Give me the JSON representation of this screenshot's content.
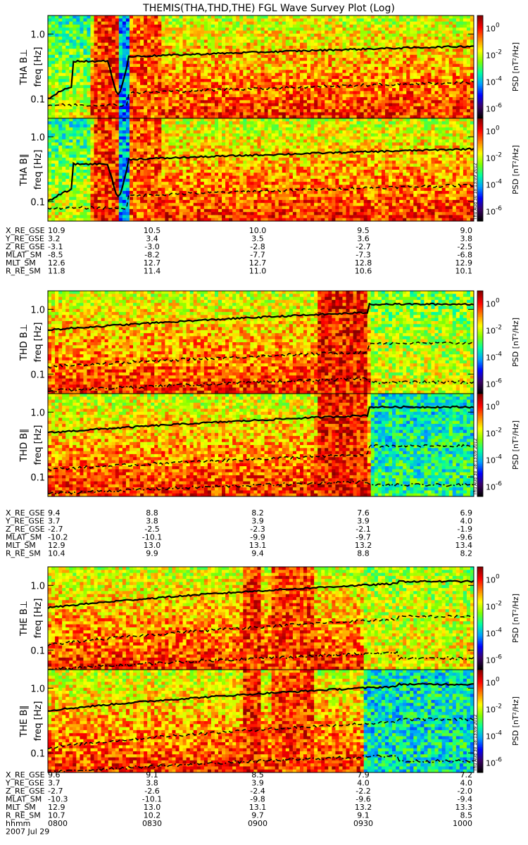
{
  "chart_data": {
    "type": "heatmap",
    "title": "THEMIS(THA,THD,THE) FGL Wave Survey Plot (Log)",
    "date": "2007 Jul 29",
    "freq_axis": {
      "label": "freq [Hz]",
      "scale": "log",
      "ticks": [
        "0.1",
        "1.0"
      ]
    },
    "colorbar": {
      "label": "PSD [nT²/Hz]",
      "scale": "log",
      "ticks": [
        "10^0",
        "10^-2",
        "10^-4",
        "10^-6"
      ],
      "colors": [
        "#000000",
        "#3a0066",
        "#0000ff",
        "#00a0ff",
        "#00ffa0",
        "#80ff00",
        "#ffff00",
        "#ff8000",
        "#ff0000",
        "#8b0000"
      ]
    },
    "stamp": "Thu Aug 30 18:13:09 2012",
    "ephemeris_labels": [
      "X_RE_GSE",
      "Y_RE_GSE",
      "Z_RE_GSE",
      "MLAT_SM",
      "MLT_SM",
      "R_RE_SM"
    ],
    "panels": [
      {
        "label": "THA B⊥",
        "group": "THA"
      },
      {
        "label": "THA B∥",
        "group": "THA"
      },
      {
        "label": "THD B⊥",
        "group": "THD"
      },
      {
        "label": "THD B∥",
        "group": "THD"
      },
      {
        "label": "THE B⊥",
        "group": "THE"
      },
      {
        "label": "THE B∥",
        "group": "THE"
      }
    ],
    "groups": [
      {
        "name": "THA",
        "ephemeris": [
          [
            "10.9",
            "10.5",
            "10.0",
            "9.5",
            "9.0"
          ],
          [
            "3.2",
            "3.4",
            "3.5",
            "3.6",
            "3.8"
          ],
          [
            "-3.1",
            "-3.0",
            "-2.8",
            "-2.7",
            "-2.5"
          ],
          [
            "-8.5",
            "-8.2",
            "-7.7",
            "-7.3",
            "-6.8"
          ],
          [
            "12.6",
            "12.7",
            "12.7",
            "12.8",
            "12.9"
          ],
          [
            "11.8",
            "11.4",
            "11.0",
            "10.6",
            "10.1"
          ]
        ]
      },
      {
        "name": "THD",
        "ephemeris": [
          [
            "9.4",
            "8.8",
            "8.2",
            "7.6",
            "6.9"
          ],
          [
            "3.7",
            "3.8",
            "3.9",
            "3.9",
            "4.0"
          ],
          [
            "-2.7",
            "-2.5",
            "-2.3",
            "-2.1",
            "-1.9"
          ],
          [
            "-10.2",
            "-10.1",
            "-9.9",
            "-9.7",
            "-9.6"
          ],
          [
            "12.9",
            "13.0",
            "13.1",
            "13.2",
            "13.4"
          ],
          [
            "10.4",
            "9.9",
            "9.4",
            "8.8",
            "8.2"
          ]
        ]
      },
      {
        "name": "THE",
        "ephemeris": [
          [
            "9.6",
            "9.1",
            "8.5",
            "7.9",
            "7.2"
          ],
          [
            "3.7",
            "3.8",
            "3.9",
            "4.0",
            "4.0"
          ],
          [
            "-2.7",
            "-2.6",
            "-2.4",
            "-2.2",
            "-2.0"
          ],
          [
            "-10.3",
            "-10.1",
            "-9.8",
            "-9.6",
            "-9.4"
          ],
          [
            "12.9",
            "13.0",
            "13.1",
            "13.2",
            "13.3"
          ],
          [
            "10.7",
            "10.2",
            "9.7",
            "9.1",
            "8.5"
          ]
        ],
        "time_label": "hhmm",
        "time_ticks": [
          "0800",
          "0830",
          "0900",
          "0930",
          "1000"
        ]
      }
    ]
  }
}
